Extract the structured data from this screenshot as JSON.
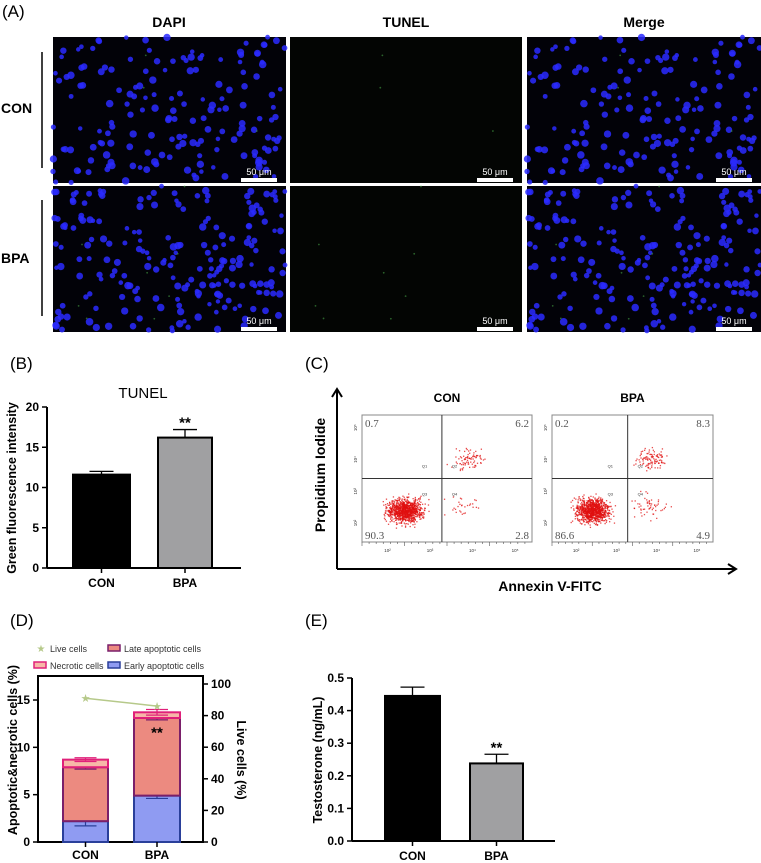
{
  "panels": {
    "a": "(A)",
    "b": "(B)",
    "c": "(C)",
    "d": "(D)",
    "e": "(E)"
  },
  "microscopy": {
    "columns": [
      "DAPI",
      "TUNEL",
      "Merge"
    ],
    "rows": [
      "CON",
      "BPA"
    ],
    "scale_bar": "50 μm",
    "colors": {
      "nuclei": "#2a2aff",
      "tunel": "#3c8c3c",
      "background": "#020208"
    }
  },
  "chart_data": [
    {
      "id": "B",
      "type": "bar",
      "title": "TUNEL",
      "ylabel": "Green fluorescence intensity",
      "categories": [
        "CON",
        "BPA"
      ],
      "values": [
        11.6,
        16.2
      ],
      "errors": [
        0.4,
        1.0
      ],
      "significance": [
        "",
        "**"
      ],
      "colors": [
        "#000000",
        "#a0a0a2"
      ],
      "ylim": [
        0,
        20
      ],
      "yticks": [
        0,
        5,
        10,
        15,
        20
      ],
      "grid": false
    },
    {
      "id": "C",
      "type": "scatter",
      "xlabel": "Annexin V-FITC",
      "ylabel": "Propidium Iodide",
      "plots": [
        {
          "title": "CON",
          "quadrants": {
            "Q1": "0.7",
            "Q2": "6.2",
            "Q3": "90.3",
            "Q4": "2.8"
          }
        },
        {
          "title": "BPA",
          "quadrants": {
            "Q1": "0.2",
            "Q2": "8.3",
            "Q3": "86.6",
            "Q4": "4.9"
          }
        }
      ],
      "quadrant_names": [
        "Q1",
        "Q2",
        "Q3",
        "Q4"
      ],
      "axis_ticks": [
        "10²",
        "10³",
        "10⁴",
        "10⁵"
      ],
      "dot_color": "#e01010"
    },
    {
      "id": "D",
      "type": "bar",
      "stacked": true,
      "ylabel": "Apoptotic&necrotic cells (%)",
      "y2label": "Live cells (%)",
      "categories": [
        "CON",
        "BPA"
      ],
      "series": [
        {
          "name": "Early apoptotic cells",
          "values": [
            2.2,
            4.9
          ],
          "errors": [
            0.5,
            0.3
          ],
          "fill": "#8f9bf2",
          "stroke": "#2a3f9a"
        },
        {
          "name": "Late apoptotic cells",
          "values": [
            5.7,
            8.2
          ],
          "errors": [
            0.2,
            0.2
          ],
          "fill": "#ec8a80",
          "stroke": "#7a1f6a"
        },
        {
          "name": "Necrotic cells",
          "values": [
            0.8,
            0.6
          ],
          "errors": [
            0.2,
            0.3
          ],
          "fill": "#f7b8a8",
          "stroke": "#e0207a"
        }
      ],
      "line_series": {
        "name": "Live cells",
        "values": [
          91,
          86
        ],
        "color": "#b6c98a"
      },
      "significance": [
        "",
        "**"
      ],
      "ylim": [
        0,
        17.5
      ],
      "yticks": [
        0,
        5,
        10,
        15
      ],
      "y2lim": [
        0,
        100
      ],
      "y2ticks": [
        0,
        20,
        40,
        60,
        80,
        100
      ],
      "legend": "top",
      "legend_order": [
        "Live cells",
        "Late apoptotic cells",
        "Necrotic cells",
        "Early apoptotic cells"
      ]
    },
    {
      "id": "E",
      "type": "bar",
      "ylabel": "Testosterone (ng/mL)",
      "categories": [
        "CON",
        "BPA"
      ],
      "values": [
        0.445,
        0.238
      ],
      "errors": [
        0.027,
        0.028
      ],
      "significance": [
        "",
        "**"
      ],
      "colors": [
        "#000000",
        "#a0a0a2"
      ],
      "ylim": [
        0,
        0.5
      ],
      "yticks": [
        "0.0",
        "0.1",
        "0.2",
        "0.3",
        "0.4",
        "0.5"
      ],
      "grid": false
    }
  ]
}
